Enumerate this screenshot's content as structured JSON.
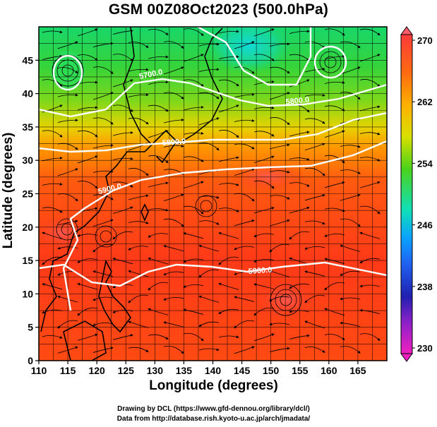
{
  "title": "GSM 00Z08Oct2023 (500.0hPa)",
  "axes": {
    "x_label": "Longitude (degrees)",
    "y_label": "Latitude  (degrees)",
    "x_ticks": [
      "110",
      "115",
      "120",
      "125",
      "130",
      "135",
      "140",
      "145",
      "150",
      "155",
      "160",
      "165"
    ],
    "y_ticks": [
      "0",
      "5",
      "10",
      "15",
      "20",
      "25",
      "30",
      "35",
      "40",
      "45"
    ]
  },
  "colorbar": {
    "ticks": [
      "270",
      "262",
      "254",
      "246",
      "238",
      "230"
    ],
    "colors": [
      "#ff3b3b",
      "#ff6a10",
      "#ffb000",
      "#d8e000",
      "#4cd21a",
      "#10e0b8",
      "#0aa0ff",
      "#2060f0",
      "#2020b0",
      "#8a20c8",
      "#f020c0"
    ]
  },
  "contour_labels": [
    "5700.0",
    "5800.0",
    "5800.0",
    "5900.0",
    "5900.0"
  ],
  "credits": {
    "line1": "Drawing by DCL (https://www.gfd-dennou.org/library/dcl/)",
    "line2": "Data from http://database.rish.kyoto-u.ac.jp/arch/jmadata/"
  }
}
